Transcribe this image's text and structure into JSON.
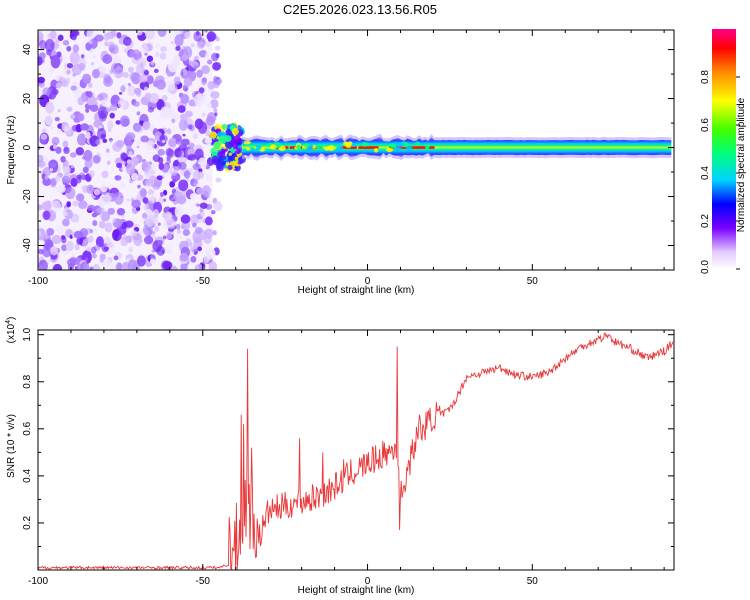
{
  "title": "C2E5.2026.023.13.56.R05",
  "colors": {
    "snr_line": "#e8383a",
    "axis": "#000000",
    "background": "#ffffff"
  },
  "chart_data": [
    {
      "id": "spectrogram",
      "type": "heatmap",
      "xlabel": "Height of straight line (km)",
      "ylabel": "Frequency (Hz)",
      "xlim": [
        -100,
        93
      ],
      "ylim": [
        -50,
        48
      ],
      "x_ticks": [
        -100,
        -50,
        0,
        50
      ],
      "y_ticks": [
        -40,
        -20,
        0,
        20,
        40
      ],
      "features": {
        "noise_region_x": [
          -100,
          -47
        ],
        "transition_x": [
          -47,
          -38
        ],
        "carrier_freq_hz": 0,
        "carrier_half_width_hz": 2,
        "carrier_wiggle_x": [
          -38,
          20
        ],
        "peak_segments_x": [
          [
            -28,
            -14
          ],
          [
            -8,
            3
          ],
          [
            7,
            20
          ]
        ]
      },
      "colorbar": {
        "label": "Normalized spectral amplitude",
        "range": [
          0.0,
          1.0
        ],
        "ticks": [
          0.0,
          0.2,
          0.4,
          0.6,
          0.8
        ],
        "tick_labels": [
          "0.0",
          "0.2",
          "0.4",
          "0.6",
          "0.8"
        ]
      }
    },
    {
      "id": "snr",
      "type": "line",
      "xlabel": "Height of straight line (km)",
      "ylabel": "SNR (10 * v/v)",
      "multiplier_label": "(x10",
      "multiplier_exp": "4",
      "multiplier_close": ")",
      "xlim": [
        -100,
        93
      ],
      "ylim": [
        0,
        1.02
      ],
      "x_ticks": [
        -100,
        -50,
        0,
        50
      ],
      "y_ticks": [
        0.2,
        0.4,
        0.6,
        0.8,
        1.0
      ],
      "y_tick_labels": [
        "0.2",
        "0.4",
        "0.6",
        "0.8",
        "1.0"
      ],
      "series": [
        {
          "name": "SNR",
          "color": "#e8383a",
          "trend_x": [
            -100,
            -50,
            -45,
            -41,
            -39,
            -38,
            -37,
            -36,
            -35,
            -34,
            -33,
            -30,
            -25,
            -20,
            -15,
            -10,
            -5,
            0,
            5,
            8,
            9,
            10,
            15,
            20,
            25,
            28,
            30,
            35,
            40,
            45,
            50,
            55,
            60,
            65,
            70,
            73,
            75,
            80,
            85,
            88,
            90,
            93
          ],
          "trend_y": [
            0.01,
            0.01,
            0.01,
            0.03,
            0.08,
            0.15,
            0.22,
            0.22,
            0.17,
            0.14,
            0.12,
            0.24,
            0.26,
            0.28,
            0.3,
            0.34,
            0.4,
            0.44,
            0.48,
            0.5,
            0.52,
            0.3,
            0.56,
            0.64,
            0.68,
            0.76,
            0.82,
            0.84,
            0.86,
            0.83,
            0.82,
            0.84,
            0.9,
            0.95,
            0.98,
            1.0,
            0.97,
            0.94,
            0.9,
            0.92,
            0.93,
            0.97
          ],
          "spikes": [
            {
              "x": -38.5,
              "y": 0.66
            },
            {
              "x": -37.5,
              "y": 0.62
            },
            {
              "x": -36.2,
              "y": 0.94
            },
            {
              "x": -35.0,
              "y": 0.52
            },
            {
              "x": -20.5,
              "y": 0.56
            },
            {
              "x": -13.5,
              "y": 0.5
            },
            {
              "x": -7.0,
              "y": 0.47
            },
            {
              "x": 9.0,
              "y": 0.95
            },
            {
              "x": 16.0,
              "y": 0.66
            },
            {
              "x": 10.0,
              "y": 0.17
            }
          ]
        }
      ]
    }
  ]
}
